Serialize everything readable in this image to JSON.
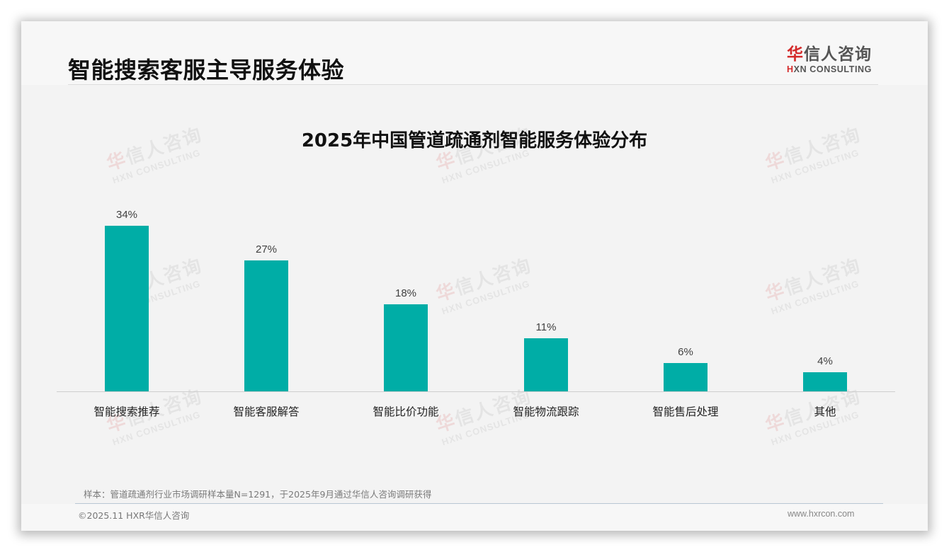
{
  "header": {
    "title": "智能搜索客服主导服务体验",
    "logo": {
      "cn_red": "华",
      "cn_rest": "信人咨询",
      "en_red": "H",
      "en_rest": "XN CONSULTING"
    }
  },
  "watermark": {
    "cn_red": "华",
    "cn_rest": "信人咨询",
    "en": "HXN CONSULTING"
  },
  "colors": {
    "bar": "#00ada6",
    "logo_red": "#d42a2a",
    "background": "#f3f3f3"
  },
  "chart_data": {
    "type": "bar",
    "title": "2025年中国管道疏通剂智能服务体验分布",
    "categories": [
      "智能搜索推荐",
      "智能客服解答",
      "智能比价功能",
      "智能物流跟踪",
      "智能售后处理",
      "其他"
    ],
    "values": [
      34,
      27,
      18,
      11,
      6,
      4
    ],
    "value_labels": [
      "34%",
      "27%",
      "18%",
      "11%",
      "6%",
      "4%"
    ],
    "unit": "%",
    "xlabel": "",
    "ylabel": "",
    "ylim": [
      0,
      40
    ],
    "grid": false,
    "legend": null,
    "data_labels": true
  },
  "footer": {
    "note": "样本：管道疏通剂行业市场调研样本量N=1291，于2025年9月通过华信人咨询调研获得",
    "copyright": "©2025.11 HXR华信人咨询",
    "website": "www.hxrcon.com"
  }
}
